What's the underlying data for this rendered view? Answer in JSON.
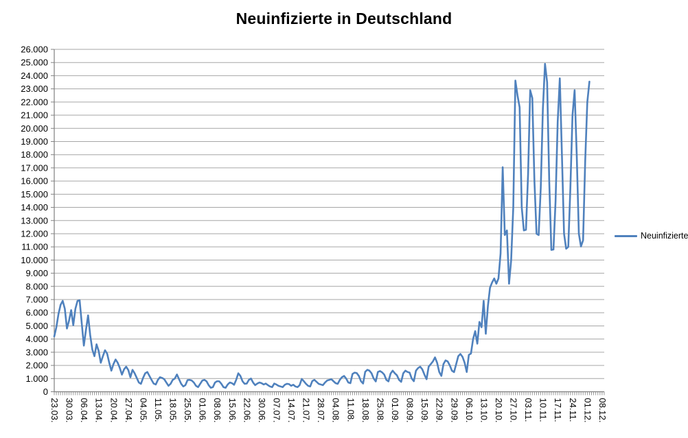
{
  "title": "Neuinfizierte in Deutschland",
  "legend": {
    "label": "Neuinfizierte"
  },
  "colors": {
    "line": "#4F81BD",
    "grid": "#A6A6A6",
    "axis": "#808080",
    "text": "#000000",
    "background": "#FFFFFF"
  },
  "chart_data": {
    "type": "line",
    "title": "Neuinfizierte in Deutschland",
    "series_name": "Neuinfizierte",
    "line_color": "#4F81BD",
    "grid": "horizontal gridlines every 1000",
    "legend_position": "right-middle",
    "ylim": [
      0,
      26000
    ],
    "y_tick_step": 1000,
    "y_tick_labels": [
      "0",
      "1.000",
      "2.000",
      "3.000",
      "4.000",
      "5.000",
      "6.000",
      "7.000",
      "8.000",
      "9.000",
      "10.000",
      "11.000",
      "12.000",
      "13.000",
      "14.000",
      "15.000",
      "16.000",
      "17.000",
      "18.000",
      "19.000",
      "20.000",
      "21.000",
      "22.000",
      "23.000",
      "24.000",
      "25.000",
      "26.000"
    ],
    "x_tick_labels": [
      "23.03.",
      "30.03.",
      "06.04.",
      "13.04.",
      "20.04.",
      "27.04.",
      "04.05.",
      "11.05.",
      "18.05.",
      "25.05.",
      "01.06.",
      "08.06.",
      "15.06.",
      "22.06.",
      "30.06.",
      "07.07.",
      "14.07.",
      "21.07.",
      "28.07.",
      "04.08.",
      "11.08.",
      "18.08.",
      "25.08.",
      "01.09.",
      "08.09.",
      "15.09.",
      "22.09.",
      "29.09.",
      "06.10.",
      "13.10.",
      "20.10.",
      "27.10.",
      "03.11.",
      "10.11.",
      "17.11.",
      "24.11.",
      "01.12.",
      "08.12."
    ],
    "x_ticks_every_n_points": 7,
    "x_total_slots": 261,
    "values": [
      4200,
      4900,
      5900,
      6600,
      6900,
      6300,
      4800,
      5400,
      6200,
      5050,
      6300,
      6900,
      6950,
      5200,
      3500,
      4700,
      5800,
      4300,
      3200,
      2700,
      3600,
      3100,
      2200,
      2700,
      3150,
      2900,
      2200,
      1600,
      2100,
      2450,
      2200,
      1800,
      1300,
      1700,
      1900,
      1650,
      1100,
      1660,
      1400,
      1050,
      700,
      600,
      1050,
      1400,
      1500,
      1200,
      900,
      620,
      550,
      900,
      1100,
      1050,
      950,
      700,
      450,
      600,
      900,
      1000,
      1310,
      950,
      600,
      400,
      500,
      880,
      900,
      850,
      700,
      450,
      350,
      600,
      850,
      900,
      790,
      500,
      300,
      350,
      700,
      800,
      790,
      600,
      350,
      300,
      550,
      700,
      650,
      530,
      900,
      1400,
      1200,
      800,
      600,
      620,
      900,
      1000,
      700,
      500,
      620,
      700,
      650,
      550,
      620,
      500,
      400,
      350,
      620,
      550,
      450,
      400,
      350,
      530,
      600,
      580,
      450,
      530,
      400,
      350,
      500,
      970,
      800,
      600,
      450,
      400,
      815,
      900,
      750,
      600,
      550,
      500,
      700,
      850,
      900,
      950,
      800,
      650,
      600,
      900,
      1100,
      1200,
      1000,
      700,
      650,
      1350,
      1450,
      1415,
      1200,
      800,
      625,
      1510,
      1665,
      1600,
      1400,
      1000,
      780,
      1500,
      1570,
      1470,
      1300,
      900,
      785,
      1380,
      1600,
      1400,
      1250,
      900,
      750,
      1400,
      1600,
      1500,
      1450,
      1000,
      800,
      1600,
      1800,
      1900,
      1700,
      1300,
      950,
      1900,
      2100,
      2300,
      2610,
      2200,
      1500,
      1200,
      2100,
      2380,
      2300,
      2000,
      1600,
      1490,
      2090,
      2700,
      2870,
      2650,
      2200,
      1500,
      2800,
      2900,
      4000,
      4600,
      3650,
      5300,
      4900,
      6900,
      4400,
      6500,
      7900,
      8300,
      8600,
      8200,
      8600,
      10500,
      17050,
      11900,
      12250,
      8200,
      10000,
      14000,
      23630,
      22500,
      21600,
      14000,
      12250,
      12300,
      16500,
      22900,
      22300,
      16000,
      12000,
      11900,
      15500,
      21500,
      24900,
      23500,
      16000,
      10770,
      10800,
      14500,
      20500,
      23800,
      18000,
      12000,
      10860,
      11000,
      15500,
      21000,
      22900,
      18000,
      12000,
      11030,
      11500,
      17500,
      22000,
      23550
    ]
  }
}
